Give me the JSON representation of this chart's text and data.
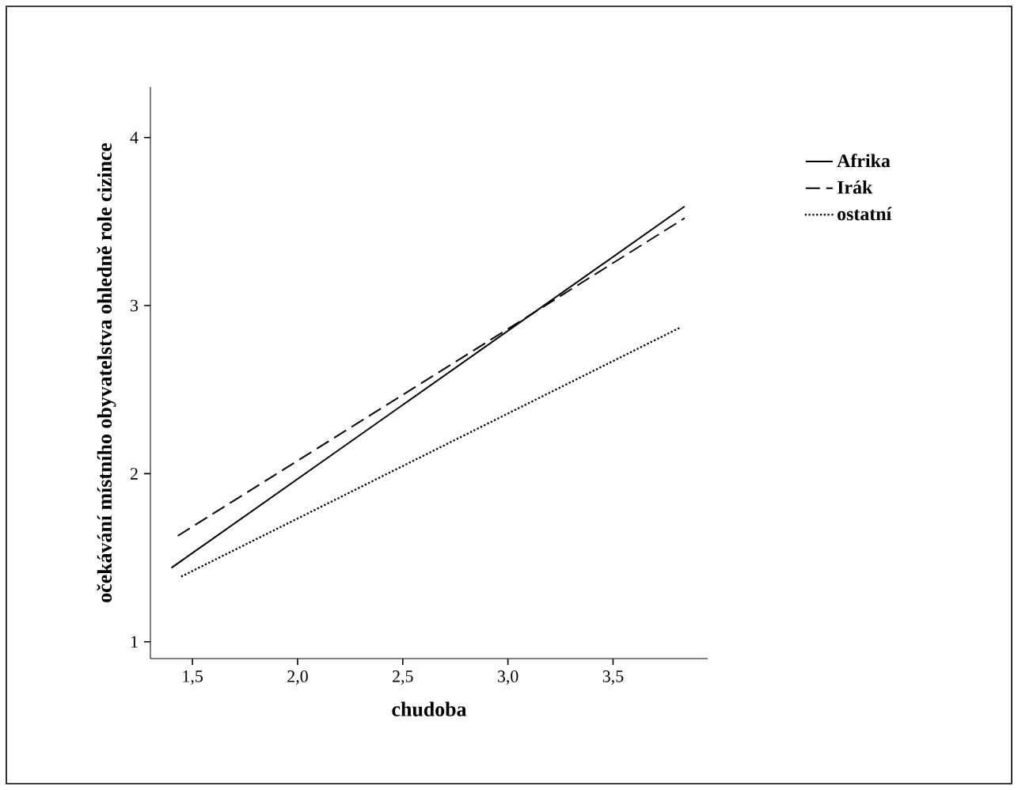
{
  "chart_data": {
    "type": "line",
    "xlabel": "chudoba",
    "ylabel": "očekávání místního obyvatelstva ohledně role cizince",
    "xlim": [
      1.3,
      3.95
    ],
    "ylim": [
      0.9,
      4.3
    ],
    "xticks": [
      {
        "value": 1.5,
        "label": "1,5"
      },
      {
        "value": 2.0,
        "label": "2,0"
      },
      {
        "value": 2.5,
        "label": "2,5"
      },
      {
        "value": 3.0,
        "label": "3,0"
      },
      {
        "value": 3.5,
        "label": "3,5"
      }
    ],
    "yticks": [
      1,
      2,
      3,
      4
    ],
    "legend": "top right",
    "grid": false,
    "series": [
      {
        "name": "Afrika",
        "color": "#000000",
        "line_style": "solid",
        "x": [
          1.4,
          3.84
        ],
        "values": [
          1.44,
          3.59
        ]
      },
      {
        "name": "Irák",
        "color": "#000000",
        "line_style": "dashed",
        "x": [
          1.43,
          3.84
        ],
        "values": [
          1.63,
          3.52
        ]
      },
      {
        "name": "ostatní",
        "color": "#000000",
        "line_style": "dotted",
        "x": [
          1.45,
          3.82
        ],
        "values": [
          1.39,
          2.87
        ]
      }
    ]
  }
}
